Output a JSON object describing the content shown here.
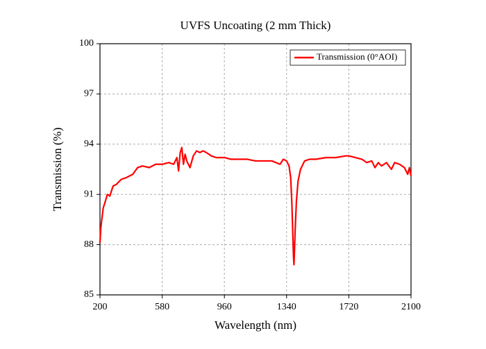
{
  "chart_data": {
    "type": "line",
    "title": "UVFS Uncoating (2 mm  Thick)",
    "x_label": "Wavelength (nm)",
    "y_label": "Transmission (%)",
    "xlim": [
      200,
      2100
    ],
    "ylim": [
      85,
      100
    ],
    "xticks": [
      200,
      580,
      960,
      1340,
      1720,
      2100
    ],
    "yticks": [
      85,
      88,
      91,
      94,
      97,
      100
    ],
    "grid": true,
    "legend": "upper right",
    "x": [
      200,
      205,
      210,
      220,
      230,
      245,
      260,
      280,
      300,
      330,
      360,
      400,
      430,
      460,
      500,
      540,
      580,
      620,
      650,
      670,
      680,
      690,
      700,
      710,
      720,
      730,
      750,
      770,
      790,
      810,
      830,
      850,
      880,
      910,
      960,
      1000,
      1050,
      1100,
      1150,
      1200,
      1250,
      1300,
      1320,
      1340,
      1355,
      1365,
      1372,
      1378,
      1382,
      1385,
      1388,
      1392,
      1400,
      1410,
      1425,
      1450,
      1480,
      1520,
      1580,
      1640,
      1700,
      1720,
      1760,
      1800,
      1830,
      1860,
      1880,
      1900,
      1920,
      1950,
      1980,
      2000,
      2030,
      2060,
      2080,
      2090,
      2100
    ],
    "series": [
      {
        "name": "Transmission (0°AOI)",
        "color": "#ff0000",
        "values": [
          88.1,
          89.0,
          89.4,
          90.2,
          90.5,
          91.0,
          90.9,
          91.5,
          91.6,
          91.9,
          92.0,
          92.2,
          92.6,
          92.7,
          92.6,
          92.8,
          92.8,
          92.9,
          92.8,
          93.2,
          92.4,
          93.5,
          93.8,
          92.8,
          93.4,
          93.0,
          92.6,
          93.3,
          93.6,
          93.5,
          93.6,
          93.5,
          93.3,
          93.2,
          93.2,
          93.1,
          93.1,
          93.1,
          93.0,
          93.0,
          93.0,
          92.8,
          93.1,
          93.0,
          92.7,
          92.0,
          90.5,
          88.6,
          87.3,
          86.8,
          87.6,
          88.8,
          90.6,
          91.8,
          92.5,
          93.0,
          93.1,
          93.1,
          93.2,
          93.2,
          93.3,
          93.3,
          93.2,
          93.1,
          92.9,
          93.0,
          92.6,
          92.9,
          92.7,
          92.9,
          92.5,
          92.9,
          92.8,
          92.6,
          92.2,
          92.6,
          92.1
        ]
      }
    ]
  }
}
